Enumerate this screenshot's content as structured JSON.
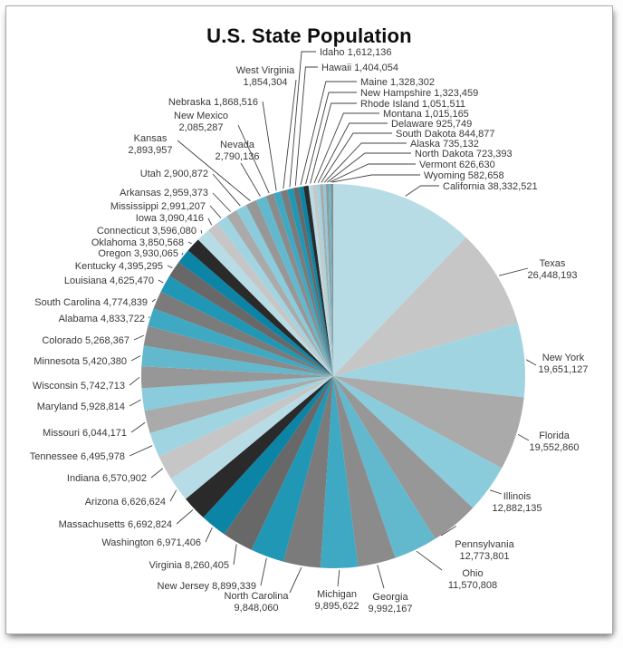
{
  "chart_data": {
    "type": "pie",
    "title": "U.S. State Population",
    "legend_position": "none",
    "label_style": "callout with state name and population value",
    "start_angle_deg": -90,
    "direction": "clockwise",
    "text_color": "#383838",
    "leader_line_color": "#404040",
    "palette": [
      "#b8dce5",
      "#c6c6c6",
      "#a1d4e1",
      "#aaaaaa",
      "#8accdb",
      "#979797",
      "#62b9cd",
      "#8b8b8b",
      "#3fa9c4",
      "#7b7b7b",
      "#1f97b5",
      "#686868",
      "#0b84a5",
      "#2a2a2a"
    ],
    "states": [
      {
        "name": "California",
        "value": 38332521
      },
      {
        "name": "Texas",
        "value": 26448193
      },
      {
        "name": "New York",
        "value": 19651127
      },
      {
        "name": "Florida",
        "value": 19552860
      },
      {
        "name": "Illinois",
        "value": 12882135
      },
      {
        "name": "Pennsylvania",
        "value": 12773801
      },
      {
        "name": "Ohio",
        "value": 11570808
      },
      {
        "name": "Georgia",
        "value": 9992167
      },
      {
        "name": "Michigan",
        "value": 9895622
      },
      {
        "name": "North Carolina",
        "value": 9848060
      },
      {
        "name": "New Jersey",
        "value": 8899339
      },
      {
        "name": "Virginia",
        "value": 8260405
      },
      {
        "name": "Washington",
        "value": 6971406
      },
      {
        "name": "Massachusetts",
        "value": 6692824
      },
      {
        "name": "Arizona",
        "value": 6626624
      },
      {
        "name": "Indiana",
        "value": 6570902
      },
      {
        "name": "Tennessee",
        "value": 6495978
      },
      {
        "name": "Missouri",
        "value": 6044171
      },
      {
        "name": "Maryland",
        "value": 5928814
      },
      {
        "name": "Wisconsin",
        "value": 5742713
      },
      {
        "name": "Minnesota",
        "value": 5420380
      },
      {
        "name": "Colorado",
        "value": 5268367
      },
      {
        "name": "Alabama",
        "value": 4833722
      },
      {
        "name": "South Carolina",
        "value": 4774839
      },
      {
        "name": "Louisiana",
        "value": 4625470
      },
      {
        "name": "Kentucky",
        "value": 4395295
      },
      {
        "name": "Oregon",
        "value": 3930065
      },
      {
        "name": "Oklahoma",
        "value": 3850568
      },
      {
        "name": "Connecticut",
        "value": 3596080
      },
      {
        "name": "Iowa",
        "value": 3090416
      },
      {
        "name": "Mississippi",
        "value": 2991207
      },
      {
        "name": "Arkansas",
        "value": 2959373
      },
      {
        "name": "Utah",
        "value": 2900872
      },
      {
        "name": "Kansas",
        "value": 2893957
      },
      {
        "name": "Nevada",
        "value": 2790136
      },
      {
        "name": "New Mexico",
        "value": 2085287
      },
      {
        "name": "Nebraska",
        "value": 1868516
      },
      {
        "name": "West Virginia",
        "value": 1854304
      },
      {
        "name": "Idaho",
        "value": 1612136
      },
      {
        "name": "Hawaii",
        "value": 1404054
      },
      {
        "name": "Maine",
        "value": 1328302
      },
      {
        "name": "New Hampshire",
        "value": 1323459
      },
      {
        "name": "Rhode Island",
        "value": 1051511
      },
      {
        "name": "Montana",
        "value": 1015165
      },
      {
        "name": "Delaware",
        "value": 925749
      },
      {
        "name": "South Dakota",
        "value": 844877
      },
      {
        "name": "Alaska",
        "value": 735132
      },
      {
        "name": "North Dakota",
        "value": 723393
      },
      {
        "name": "Vermont",
        "value": 626630
      },
      {
        "name": "Wyoming",
        "value": 582658
      }
    ]
  }
}
